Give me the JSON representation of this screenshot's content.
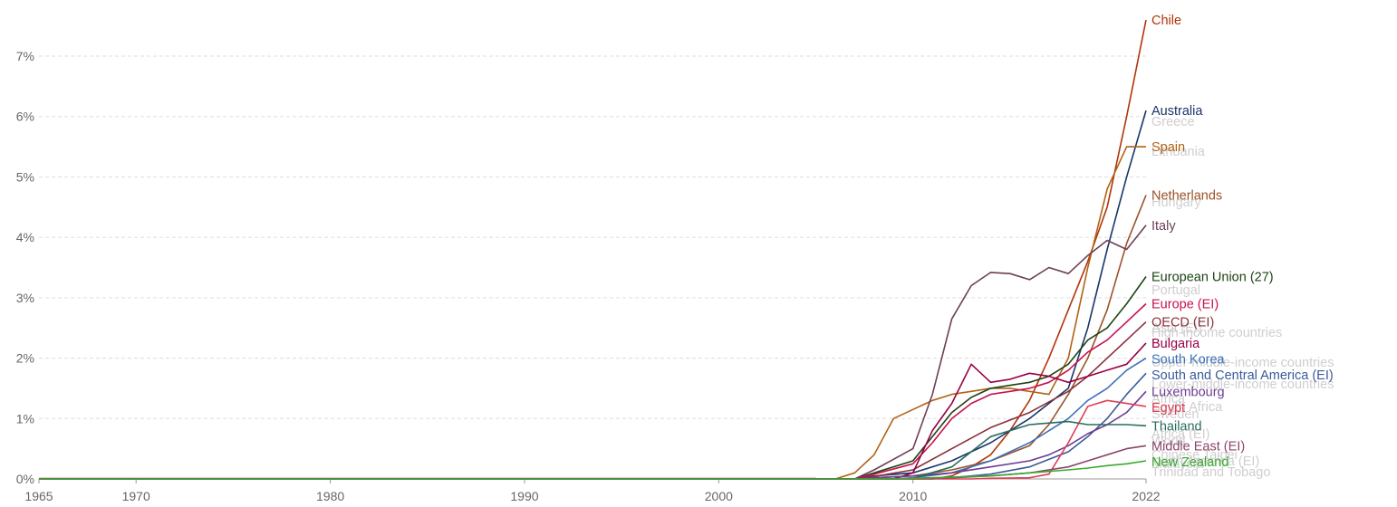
{
  "chart_data": {
    "type": "line",
    "title": "",
    "xlabel": "",
    "ylabel": "",
    "xlim": [
      1965,
      2022
    ],
    "ylim": [
      0,
      7.6
    ],
    "y_unit": "%",
    "x_ticks": [
      "1965",
      "1970",
      "1980",
      "1990",
      "2000",
      "2010",
      "2022"
    ],
    "y_ticks": [
      "0%",
      "1%",
      "2%",
      "3%",
      "4%",
      "5%",
      "6%",
      "7%"
    ],
    "grid": "horizontal dashed",
    "legend": "inline labels at right end of lines",
    "series": [
      {
        "name": "Chile",
        "color": "#b13507",
        "x": [
          2012,
          2013,
          2014,
          2015,
          2016,
          2017,
          2018,
          2019,
          2020,
          2021,
          2022
        ],
        "values": [
          0.05,
          0.2,
          0.4,
          0.8,
          1.3,
          2.0,
          2.8,
          3.6,
          4.5,
          6.0,
          7.6
        ]
      },
      {
        "name": "Australia",
        "color": "#18366a",
        "x": [
          2008,
          2010,
          2012,
          2014,
          2016,
          2018,
          2019,
          2020,
          2021,
          2022
        ],
        "values": [
          0.05,
          0.1,
          0.3,
          0.6,
          1.0,
          1.5,
          2.5,
          3.8,
          5.0,
          6.1
        ]
      },
      {
        "name": "Spain",
        "color": "#b16214",
        "x": [
          2007,
          2008,
          2009,
          2010,
          2011,
          2012,
          2013,
          2014,
          2015,
          2016,
          2017,
          2018,
          2019,
          2020,
          2021,
          2022
        ],
        "values": [
          0.1,
          0.4,
          1.0,
          1.15,
          1.3,
          1.4,
          1.45,
          1.5,
          1.5,
          1.45,
          1.4,
          2.0,
          3.5,
          4.8,
          5.5,
          5.5
        ]
      },
      {
        "name": "Netherlands",
        "color": "#9a5129",
        "x": [
          2008,
          2010,
          2012,
          2014,
          2016,
          2017,
          2018,
          2019,
          2020,
          2021,
          2022
        ],
        "values": [
          0.02,
          0.05,
          0.15,
          0.3,
          0.55,
          0.9,
          1.4,
          2.0,
          2.8,
          3.9,
          4.7
        ]
      },
      {
        "name": "Italy",
        "color": "#6d3e56",
        "x": [
          2008,
          2010,
          2011,
          2012,
          2013,
          2014,
          2015,
          2016,
          2017,
          2018,
          2019,
          2020,
          2021,
          2022
        ],
        "values": [
          0.15,
          0.5,
          1.4,
          2.65,
          3.2,
          3.42,
          3.4,
          3.3,
          3.5,
          3.4,
          3.7,
          3.95,
          3.8,
          4.2
        ]
      },
      {
        "name": "European Union (27)",
        "color": "#1d4414",
        "x": [
          2008,
          2010,
          2011,
          2012,
          2013,
          2014,
          2015,
          2016,
          2017,
          2018,
          2019,
          2020,
          2021,
          2022
        ],
        "values": [
          0.1,
          0.3,
          0.7,
          1.1,
          1.35,
          1.5,
          1.55,
          1.6,
          1.7,
          1.9,
          2.3,
          2.5,
          2.9,
          3.35
        ]
      },
      {
        "name": "Europe (EI)",
        "color": "#c7114e",
        "x": [
          2008,
          2010,
          2011,
          2012,
          2013,
          2014,
          2015,
          2016,
          2017,
          2018,
          2019,
          2020,
          2021,
          2022
        ],
        "values": [
          0.08,
          0.25,
          0.6,
          1.0,
          1.25,
          1.4,
          1.45,
          1.5,
          1.6,
          1.8,
          2.1,
          2.3,
          2.6,
          2.9
        ]
      },
      {
        "name": "OECD (EI)",
        "color": "#883039",
        "x": [
          2008,
          2010,
          2012,
          2014,
          2016,
          2018,
          2019,
          2020,
          2021,
          2022
        ],
        "values": [
          0.04,
          0.15,
          0.5,
          0.85,
          1.1,
          1.45,
          1.7,
          2.0,
          2.3,
          2.6
        ]
      },
      {
        "name": "Bulgaria",
        "color": "#970046",
        "x": [
          2010,
          2011,
          2012,
          2013,
          2014,
          2015,
          2016,
          2017,
          2018,
          2019,
          2020,
          2021,
          2022
        ],
        "values": [
          0.1,
          0.8,
          1.25,
          1.9,
          1.6,
          1.65,
          1.75,
          1.7,
          1.6,
          1.7,
          1.8,
          1.9,
          2.25
        ]
      },
      {
        "name": "South Korea",
        "color": "#3c70b8",
        "x": [
          2010,
          2012,
          2014,
          2016,
          2018,
          2019,
          2020,
          2021,
          2022
        ],
        "values": [
          0.02,
          0.1,
          0.3,
          0.6,
          1.0,
          1.3,
          1.5,
          1.8,
          2.0
        ]
      },
      {
        "name": "South and Central America (EI)",
        "color": "#3b5a9a",
        "x": [
          2012,
          2014,
          2016,
          2018,
          2019,
          2020,
          2021,
          2022
        ],
        "values": [
          0.02,
          0.08,
          0.2,
          0.45,
          0.7,
          1.0,
          1.4,
          1.75
        ]
      },
      {
        "name": "Luxembourg",
        "color": "#6c3d91",
        "x": [
          2008,
          2010,
          2012,
          2014,
          2016,
          2017,
          2018,
          2019,
          2020,
          2021,
          2022
        ],
        "values": [
          0.02,
          0.05,
          0.1,
          0.2,
          0.3,
          0.4,
          0.55,
          0.75,
          0.9,
          1.1,
          1.45
        ]
      },
      {
        "name": "Egypt",
        "color": "#e03e56",
        "x": [
          2014,
          2016,
          2017,
          2018,
          2019,
          2020,
          2021,
          2022
        ],
        "values": [
          0.01,
          0.02,
          0.08,
          0.6,
          1.2,
          1.3,
          1.25,
          1.2
        ]
      },
      {
        "name": "Thailand",
        "color": "#286d5f",
        "x": [
          2010,
          2012,
          2014,
          2016,
          2018,
          2019,
          2020,
          2021,
          2022
        ],
        "values": [
          0.01,
          0.2,
          0.7,
          0.9,
          0.95,
          0.9,
          0.9,
          0.9,
          0.88
        ]
      },
      {
        "name": "Middle East (EI)",
        "color": "#8c4569",
        "x": [
          2010,
          2012,
          2014,
          2016,
          2018,
          2019,
          2020,
          2021,
          2022
        ],
        "values": [
          0.01,
          0.02,
          0.05,
          0.1,
          0.2,
          0.3,
          0.4,
          0.5,
          0.55
        ]
      },
      {
        "name": "New Zealand",
        "color": "#38aa2e",
        "x": [
          2010,
          2014,
          2016,
          2018,
          2019,
          2020,
          2021,
          2022
        ],
        "values": [
          0.01,
          0.05,
          0.1,
          0.15,
          0.18,
          0.22,
          0.25,
          0.3
        ]
      }
    ],
    "faded_labels": [
      "Greece",
      "Lithuania",
      "Hungary",
      "Portugal",
      "Asia (EI)",
      "High-income countries",
      "Upper-middle-income countries",
      "Lower-middle-income countries",
      "Africa",
      "South Africa",
      "Sweden",
      "Africa (EI)",
      "World",
      "Chinese Taipei",
      "North America (EI)",
      "Malaysia",
      "Trinidad and Tobago"
    ],
    "faded_color": "#cfcfcf"
  }
}
